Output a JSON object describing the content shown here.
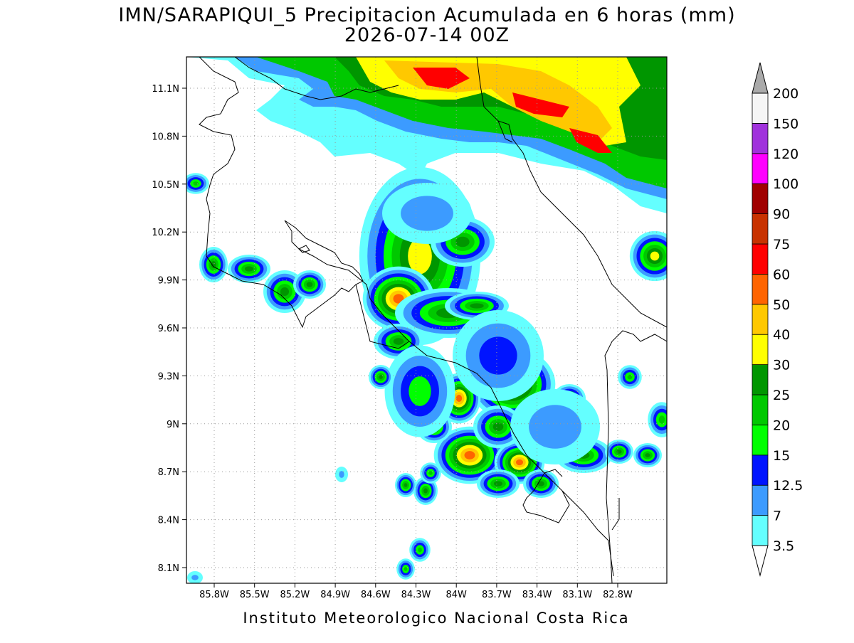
{
  "map": {
    "title": [
      "IMN/SARAPIQUI_5 Precipitacion Acumulada en 6 horas (mm)",
      "2026-07-14 00Z"
    ],
    "lat_labels": [
      "11.1N",
      "10.8N",
      "10.5N",
      "10.2N",
      "9.9N",
      "9.6N",
      "9.3N",
      "9N",
      "8.7N",
      "8.4N",
      "8.1N"
    ],
    "lon_labels": [
      "85.8W",
      "85.5W",
      "85.2W",
      "84.9W",
      "84.6W",
      "84.3W",
      "84W",
      "83.7W",
      "83.4W",
      "83.1W",
      "82.8W"
    ],
    "colorbar": {
      "levels": [
        "3.5",
        "7",
        "12.5",
        "15",
        "20",
        "25",
        "30",
        "40",
        "50",
        "60",
        "75",
        "90",
        "100",
        "120",
        "150",
        "200"
      ],
      "colors": [
        "#64ffff",
        "#3c9bff",
        "#0014ff",
        "#00ff00",
        "#00c800",
        "#009600",
        "#ffff00",
        "#ffc800",
        "#ff6400",
        "#ff0000",
        "#c83200",
        "#a00000",
        "#ff00ff",
        "#a032dc",
        "#f5f5f5"
      ],
      "under_color": "#ffffff",
      "over_color": "#aaaaaa"
    },
    "footer": "Instituto Meteorologico Nacional Costa Rica"
  }
}
